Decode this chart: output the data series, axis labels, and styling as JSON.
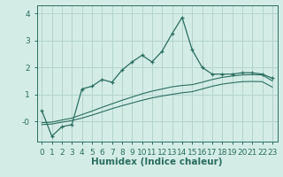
{
  "xlabel": "Humidex (Indice chaleur)",
  "bg_color": "#d4ece6",
  "grid_color": "#b2d4cc",
  "line_color": "#2a6e60",
  "x_main": [
    0,
    1,
    2,
    3,
    4,
    5,
    6,
    7,
    8,
    9,
    10,
    11,
    12,
    13,
    14,
    15,
    16,
    17,
    18,
    19,
    20,
    21,
    22,
    23
  ],
  "y_main": [
    0.4,
    -0.55,
    -0.2,
    -0.12,
    1.2,
    1.3,
    1.55,
    1.45,
    1.9,
    2.2,
    2.45,
    2.2,
    2.6,
    3.25,
    3.85,
    2.65,
    2.0,
    1.75,
    1.75,
    1.75,
    1.8,
    1.8,
    1.75,
    1.6
  ],
  "x_upper": [
    0,
    1,
    2,
    3,
    4,
    5,
    6,
    7,
    8,
    9,
    10,
    11,
    12,
    13,
    14,
    15,
    16,
    17,
    18,
    19,
    20,
    21,
    22,
    23
  ],
  "y_upper": [
    -0.05,
    -0.03,
    0.05,
    0.12,
    0.25,
    0.38,
    0.52,
    0.65,
    0.78,
    0.9,
    1.02,
    1.12,
    1.2,
    1.28,
    1.33,
    1.36,
    1.45,
    1.55,
    1.63,
    1.68,
    1.72,
    1.73,
    1.72,
    1.5
  ],
  "x_lower": [
    0,
    1,
    2,
    3,
    4,
    5,
    6,
    7,
    8,
    9,
    10,
    11,
    12,
    13,
    14,
    15,
    16,
    17,
    18,
    19,
    20,
    21,
    22,
    23
  ],
  "y_lower": [
    -0.12,
    -0.1,
    -0.03,
    0.03,
    0.12,
    0.23,
    0.35,
    0.47,
    0.58,
    0.68,
    0.78,
    0.87,
    0.94,
    1.0,
    1.06,
    1.1,
    1.2,
    1.3,
    1.38,
    1.43,
    1.47,
    1.48,
    1.47,
    1.27
  ],
  "xlim": [
    -0.5,
    23.5
  ],
  "ylim": [
    -0.75,
    4.3
  ],
  "yticks": [
    0,
    1,
    2,
    3,
    4
  ],
  "ytick_labels": [
    "-0",
    "1",
    "2",
    "3",
    "4"
  ],
  "xticks": [
    0,
    1,
    2,
    3,
    4,
    5,
    6,
    7,
    8,
    9,
    10,
    11,
    12,
    13,
    14,
    15,
    16,
    17,
    18,
    19,
    20,
    21,
    22,
    23
  ],
  "xlabel_fontsize": 7.5,
  "tick_fontsize": 6.5
}
